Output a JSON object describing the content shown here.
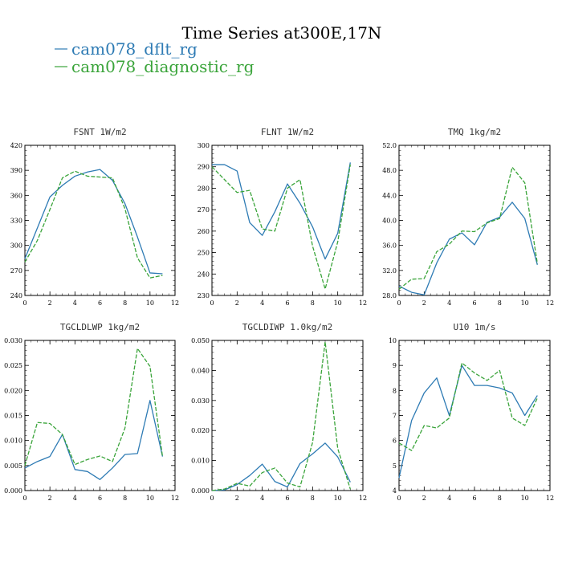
{
  "title": "Time Series at300E,17N",
  "legend": [
    {
      "label": "cam078_dflt_rg",
      "color": "#2e7bb4",
      "dash": ""
    },
    {
      "label": "cam078_diagnostic_rg",
      "color": "#3aa43a",
      "dash": "5,2"
    }
  ],
  "chart_data": [
    {
      "type": "line",
      "title": "FSNT   1W/m2",
      "x": [
        0,
        1,
        2,
        3,
        4,
        5,
        6,
        7,
        8,
        9,
        10,
        11
      ],
      "xlim": [
        0,
        12
      ],
      "xticks": [
        "0",
        "2",
        "4",
        "6",
        "8",
        "10",
        "12"
      ],
      "ylim": [
        240,
        420
      ],
      "yticks": [
        "240",
        "270",
        "300",
        "330",
        "360",
        "390",
        "420"
      ],
      "series": [
        {
          "name": "cam078_dflt_rg",
          "values": [
            284,
            321,
            358,
            372,
            383,
            388,
            391,
            378,
            350,
            310,
            267,
            266
          ]
        },
        {
          "name": "cam078_diagnostic_rg",
          "values": [
            280,
            306,
            343,
            381,
            389,
            383,
            382,
            381,
            344,
            285,
            261,
            264
          ]
        }
      ]
    },
    {
      "type": "line",
      "title": "FLNT   1W/m2",
      "x": [
        0,
        1,
        2,
        3,
        4,
        5,
        6,
        7,
        8,
        9,
        10,
        11
      ],
      "xlim": [
        0,
        12
      ],
      "xticks": [
        "0",
        "2",
        "4",
        "6",
        "8",
        "10",
        "12"
      ],
      "ylim": [
        230,
        300
      ],
      "yticks": [
        "230",
        "240",
        "250",
        "260",
        "270",
        "280",
        "290",
        "300"
      ],
      "series": [
        {
          "name": "cam078_dflt_rg",
          "values": [
            291,
            291,
            288,
            264,
            258,
            269,
            282,
            273,
            262,
            247,
            259,
            292
          ]
        },
        {
          "name": "cam078_diagnostic_rg",
          "values": [
            290,
            284,
            278,
            279,
            261,
            260,
            280,
            284,
            253,
            233,
            255,
            291
          ]
        }
      ]
    },
    {
      "type": "line",
      "title": "TMQ   1kg/m2",
      "x": [
        0,
        1,
        2,
        3,
        4,
        5,
        6,
        7,
        8,
        9,
        10,
        11
      ],
      "xlim": [
        0,
        12
      ],
      "xticks": [
        "0",
        "2",
        "4",
        "6",
        "8",
        "10",
        "12"
      ],
      "ylim": [
        28,
        52
      ],
      "yticks": [
        "28.0",
        "32.0",
        "36.0",
        "40.0",
        "44.0",
        "48.0",
        "52.0"
      ],
      "series": [
        {
          "name": "cam078_dflt_rg",
          "values": [
            29.5,
            28.5,
            28.1,
            33.2,
            37.0,
            38.0,
            36.1,
            39.7,
            40.5,
            42.9,
            40.3,
            32.9
          ]
        },
        {
          "name": "cam078_diagnostic_rg",
          "values": [
            29.0,
            30.6,
            30.7,
            35.0,
            36.2,
            38.3,
            38.2,
            39.6,
            40.3,
            48.5,
            46.0,
            33.1
          ]
        }
      ]
    },
    {
      "type": "line",
      "title": "TGCLDLWP   1kg/m2",
      "x": [
        0,
        1,
        2,
        3,
        4,
        5,
        6,
        7,
        8,
        9,
        10,
        11
      ],
      "xlim": [
        0,
        12
      ],
      "xticks": [
        "0",
        "2",
        "4",
        "6",
        "8",
        "10",
        "12"
      ],
      "ylim": [
        0,
        0.03
      ],
      "yticks": [
        "0.000",
        "0.005",
        "0.010",
        "0.015",
        "0.020",
        "0.025",
        "0.030"
      ],
      "series": [
        {
          "name": "cam078_dflt_rg",
          "values": [
            0.0045,
            0.0058,
            0.0068,
            0.0112,
            0.0042,
            0.0038,
            0.0022,
            0.0045,
            0.0072,
            0.0074,
            0.018,
            0.0068
          ]
        },
        {
          "name": "cam078_diagnostic_rg",
          "values": [
            0.005,
            0.0136,
            0.0134,
            0.0112,
            0.0052,
            0.0062,
            0.0069,
            0.0058,
            0.0125,
            0.0284,
            0.0248,
            0.0068
          ]
        }
      ]
    },
    {
      "type": "line",
      "title": "TGCLDIWP   1.0kg/m2",
      "x": [
        0,
        1,
        2,
        3,
        4,
        5,
        6,
        7,
        8,
        9,
        10,
        11
      ],
      "xlim": [
        0,
        12
      ],
      "xticks": [
        "0",
        "2",
        "4",
        "6",
        "8",
        "10",
        "12"
      ],
      "ylim": [
        0,
        0.05
      ],
      "yticks": [
        "0.000",
        "0.010",
        "0.020",
        "0.030",
        "0.040",
        "0.050"
      ],
      "series": [
        {
          "name": "cam078_dflt_rg",
          "values": [
            0.0,
            0.0002,
            0.002,
            0.005,
            0.0088,
            0.003,
            0.0012,
            0.009,
            0.0122,
            0.0158,
            0.0112,
            0.0028
          ]
        },
        {
          "name": "cam078_diagnostic_rg",
          "values": [
            0.0,
            0.0005,
            0.0024,
            0.0015,
            0.006,
            0.0075,
            0.0025,
            0.0012,
            0.016,
            0.0495,
            0.014,
            0.0005
          ]
        }
      ]
    },
    {
      "type": "line",
      "title": "U10   1m/s",
      "x": [
        0,
        1,
        2,
        3,
        4,
        5,
        6,
        7,
        8,
        9,
        10,
        11
      ],
      "xlim": [
        0,
        12
      ],
      "xticks": [
        "0",
        "2",
        "4",
        "6",
        "8",
        "10",
        "12"
      ],
      "ylim": [
        4,
        10
      ],
      "yticks": [
        "4",
        "5",
        "6",
        "7",
        "8",
        "9",
        "10"
      ],
      "series": [
        {
          "name": "cam078_dflt_rg",
          "values": [
            4.5,
            6.8,
            7.9,
            8.5,
            7.0,
            9.0,
            8.2,
            8.2,
            8.1,
            7.9,
            7.0,
            7.8
          ]
        },
        {
          "name": "cam078_diagnostic_rg",
          "values": [
            5.9,
            5.6,
            6.6,
            6.5,
            6.9,
            9.1,
            8.7,
            8.4,
            8.8,
            6.9,
            6.6,
            7.7
          ]
        }
      ]
    }
  ]
}
